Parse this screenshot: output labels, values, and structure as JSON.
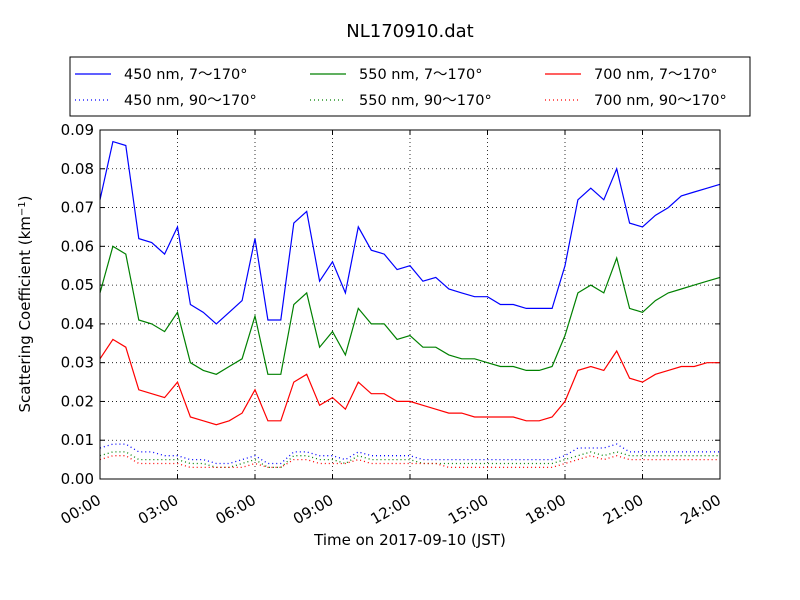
{
  "chart_data": {
    "type": "line",
    "title": "NL170910.dat",
    "xlabel": "Time on 2017-09-10 (JST)",
    "ylabel": "Scattering Coefficient (km",
    "ylabel_sup": "−1",
    "ylabel_close": ")",
    "xlim": [
      "00:00",
      "24:00"
    ],
    "ylim": [
      0,
      0.09
    ],
    "x_ticks": [
      "00:00",
      "03:00",
      "06:00",
      "09:00",
      "12:00",
      "15:00",
      "18:00",
      "21:00",
      "24:00"
    ],
    "y_ticks": [
      "0.00",
      "0.01",
      "0.02",
      "0.03",
      "0.04",
      "0.05",
      "0.06",
      "0.07",
      "0.08",
      "0.09"
    ],
    "grid": true,
    "legend_placement": "top, above plot, 3 columns",
    "colors": {
      "blue": "#0000ff",
      "green": "#008000",
      "red": "#ff0000"
    },
    "x": [
      "00:00",
      "00:30",
      "01:00",
      "01:30",
      "02:00",
      "02:30",
      "03:00",
      "03:30",
      "04:00",
      "04:30",
      "05:00",
      "05:30",
      "06:00",
      "06:30",
      "07:00",
      "07:30",
      "08:00",
      "08:30",
      "09:00",
      "09:30",
      "10:00",
      "10:30",
      "11:00",
      "11:30",
      "12:00",
      "12:30",
      "13:00",
      "13:30",
      "14:00",
      "14:30",
      "15:00",
      "15:30",
      "16:00",
      "16:30",
      "17:00",
      "17:30",
      "18:00",
      "18:30",
      "19:00",
      "19:30",
      "20:00",
      "20:30",
      "21:00",
      "21:30",
      "22:00",
      "22:30",
      "23:00",
      "23:30",
      "24:00"
    ],
    "series": [
      {
        "name": "450 nm, 7～170°",
        "color": "#0000ff",
        "style": "solid",
        "values": [
          0.072,
          0.087,
          0.086,
          0.062,
          0.061,
          0.058,
          0.065,
          0.045,
          0.043,
          0.04,
          0.043,
          0.046,
          0.062,
          0.041,
          0.041,
          0.066,
          0.069,
          0.051,
          0.056,
          0.048,
          0.065,
          0.059,
          0.058,
          0.054,
          0.055,
          0.051,
          0.052,
          0.049,
          0.048,
          0.047,
          0.047,
          0.045,
          0.045,
          0.044,
          0.044,
          0.044,
          0.055,
          0.072,
          0.075,
          0.072,
          0.08,
          0.066,
          0.065,
          0.068,
          0.07,
          0.073,
          0.074,
          0.075,
          0.076
        ]
      },
      {
        "name": "550 nm, 7～170°",
        "color": "#008000",
        "style": "solid",
        "values": [
          0.048,
          0.06,
          0.058,
          0.041,
          0.04,
          0.038,
          0.043,
          0.03,
          0.028,
          0.027,
          0.029,
          0.031,
          0.042,
          0.027,
          0.027,
          0.045,
          0.048,
          0.034,
          0.038,
          0.032,
          0.044,
          0.04,
          0.04,
          0.036,
          0.037,
          0.034,
          0.034,
          0.032,
          0.031,
          0.031,
          0.03,
          0.029,
          0.029,
          0.028,
          0.028,
          0.029,
          0.037,
          0.048,
          0.05,
          0.048,
          0.057,
          0.044,
          0.043,
          0.046,
          0.048,
          0.049,
          0.05,
          0.051,
          0.052
        ]
      },
      {
        "name": "700 nm, 7～170°",
        "color": "#ff0000",
        "style": "solid",
        "values": [
          0.031,
          0.036,
          0.034,
          0.023,
          0.022,
          0.021,
          0.025,
          0.016,
          0.015,
          0.014,
          0.015,
          0.017,
          0.023,
          0.015,
          0.015,
          0.025,
          0.027,
          0.019,
          0.021,
          0.018,
          0.025,
          0.022,
          0.022,
          0.02,
          0.02,
          0.019,
          0.018,
          0.017,
          0.017,
          0.016,
          0.016,
          0.016,
          0.016,
          0.015,
          0.015,
          0.016,
          0.02,
          0.028,
          0.029,
          0.028,
          0.033,
          0.026,
          0.025,
          0.027,
          0.028,
          0.029,
          0.029,
          0.03,
          0.03
        ]
      },
      {
        "name": "450 nm, 90～170°",
        "color": "#0000ff",
        "style": "dotted",
        "values": [
          0.008,
          0.009,
          0.009,
          0.007,
          0.007,
          0.006,
          0.006,
          0.005,
          0.005,
          0.004,
          0.004,
          0.005,
          0.006,
          0.004,
          0.004,
          0.007,
          0.007,
          0.006,
          0.006,
          0.005,
          0.007,
          0.006,
          0.006,
          0.006,
          0.006,
          0.005,
          0.005,
          0.005,
          0.005,
          0.005,
          0.005,
          0.005,
          0.005,
          0.005,
          0.005,
          0.005,
          0.006,
          0.008,
          0.008,
          0.008,
          0.009,
          0.007,
          0.007,
          0.007,
          0.007,
          0.007,
          0.007,
          0.007,
          0.007
        ]
      },
      {
        "name": "550 nm, 90～170°",
        "color": "#008000",
        "style": "dotted",
        "values": [
          0.006,
          0.007,
          0.007,
          0.005,
          0.005,
          0.005,
          0.005,
          0.004,
          0.004,
          0.003,
          0.003,
          0.004,
          0.005,
          0.003,
          0.003,
          0.006,
          0.006,
          0.005,
          0.005,
          0.004,
          0.006,
          0.005,
          0.005,
          0.005,
          0.005,
          0.004,
          0.004,
          0.004,
          0.004,
          0.004,
          0.004,
          0.004,
          0.004,
          0.004,
          0.004,
          0.004,
          0.005,
          0.006,
          0.007,
          0.006,
          0.007,
          0.006,
          0.006,
          0.006,
          0.006,
          0.006,
          0.006,
          0.006,
          0.006
        ]
      },
      {
        "name": "700 nm, 90～170°",
        "color": "#ff0000",
        "style": "dotted",
        "values": [
          0.005,
          0.006,
          0.006,
          0.004,
          0.004,
          0.004,
          0.004,
          0.003,
          0.003,
          0.003,
          0.003,
          0.003,
          0.004,
          0.003,
          0.003,
          0.005,
          0.005,
          0.004,
          0.004,
          0.004,
          0.005,
          0.004,
          0.004,
          0.004,
          0.004,
          0.004,
          0.004,
          0.003,
          0.003,
          0.003,
          0.003,
          0.003,
          0.003,
          0.003,
          0.003,
          0.003,
          0.004,
          0.005,
          0.006,
          0.005,
          0.006,
          0.005,
          0.005,
          0.005,
          0.005,
          0.005,
          0.005,
          0.005,
          0.005
        ]
      }
    ]
  }
}
